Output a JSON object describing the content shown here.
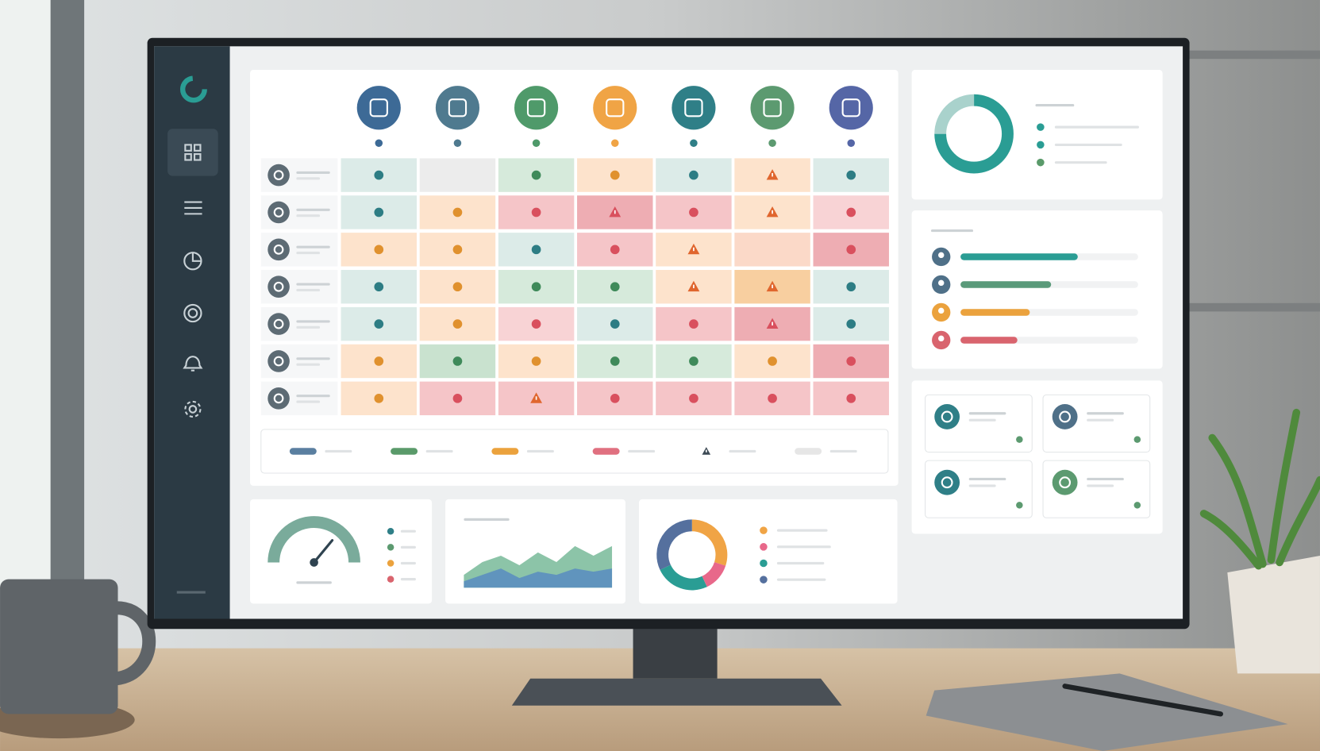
{
  "matrix": {
    "columns": [
      {
        "color": "#3d6a96"
      },
      {
        "color": "#4f7a8f"
      },
      {
        "color": "#4f9a6a"
      },
      {
        "color": "#f0a445"
      },
      {
        "color": "#2f7f87"
      },
      {
        "color": "#5c9a70"
      },
      {
        "color": "#5566a6"
      }
    ],
    "rows": [
      [
        {
          "fill": "#dcebe8",
          "dot": "#2d7d84",
          "warning": false
        },
        {
          "fill": "#ececec",
          "dot": null,
          "warning": false
        },
        {
          "fill": "#d6eadb",
          "dot": "#3f8a5a",
          "warning": false
        },
        {
          "fill": "#fde3cc",
          "dot": "#e0912e",
          "warning": false
        },
        {
          "fill": "#dcebe8",
          "dot": "#2d7d84",
          "warning": false
        },
        {
          "fill": "#fde3cc",
          "dot": "#e0662e",
          "warning": true
        },
        {
          "fill": "#dcebe8",
          "dot": "#2d7d84",
          "warning": false
        }
      ],
      [
        {
          "fill": "#dcebe8",
          "dot": "#2d7d84",
          "warning": false
        },
        {
          "fill": "#fde3cc",
          "dot": "#e0912e",
          "warning": false
        },
        {
          "fill": "#f5c5c8",
          "dot": "#d9505e",
          "warning": false
        },
        {
          "fill": "#eeadb3",
          "dot": "#d9505e",
          "warning": true
        },
        {
          "fill": "#f5c5c8",
          "dot": "#d9505e",
          "warning": false
        },
        {
          "fill": "#fde3cc",
          "dot": "#e0662e",
          "warning": true
        },
        {
          "fill": "#f8d3d5",
          "dot": "#d9505e",
          "warning": false
        }
      ],
      [
        {
          "fill": "#fde3cc",
          "dot": "#e0912e",
          "warning": false
        },
        {
          "fill": "#fde3cc",
          "dot": "#e0912e",
          "warning": false
        },
        {
          "fill": "#dcebe8",
          "dot": "#2d7d84",
          "warning": false
        },
        {
          "fill": "#f5c5c8",
          "dot": "#d9505e",
          "warning": false
        },
        {
          "fill": "#fde3cc",
          "dot": "#e0662e",
          "warning": true
        },
        {
          "fill": "#fbd9c8",
          "dot": null,
          "warning": false
        },
        {
          "fill": "#eeadb3",
          "dot": "#d9505e",
          "warning": false
        }
      ],
      [
        {
          "fill": "#dcebe8",
          "dot": "#2d7d84",
          "warning": false
        },
        {
          "fill": "#fde3cc",
          "dot": "#e0912e",
          "warning": false
        },
        {
          "fill": "#d6eadb",
          "dot": "#3f8a5a",
          "warning": false
        },
        {
          "fill": "#d6eadb",
          "dot": "#3f8a5a",
          "warning": false
        },
        {
          "fill": "#fde3cc",
          "dot": "#e0662e",
          "warning": true
        },
        {
          "fill": "#f8cfa0",
          "dot": "#e0662e",
          "warning": true
        },
        {
          "fill": "#dcebe8",
          "dot": "#2d7d84",
          "warning": false
        }
      ],
      [
        {
          "fill": "#dcebe8",
          "dot": "#2d7d84",
          "warning": false
        },
        {
          "fill": "#fde3cc",
          "dot": "#e0912e",
          "warning": false
        },
        {
          "fill": "#f8d3d5",
          "dot": "#d9505e",
          "warning": false
        },
        {
          "fill": "#dcebe8",
          "dot": "#2d7d84",
          "warning": false
        },
        {
          "fill": "#f5c5c8",
          "dot": "#d9505e",
          "warning": false
        },
        {
          "fill": "#eeadb3",
          "dot": "#d9505e",
          "warning": true
        },
        {
          "fill": "#dcebe8",
          "dot": "#2d7d84",
          "warning": false
        }
      ],
      [
        {
          "fill": "#fde3cc",
          "dot": "#e0912e",
          "warning": false
        },
        {
          "fill": "#c9e2cf",
          "dot": "#3f8a5a",
          "warning": false
        },
        {
          "fill": "#fde3cc",
          "dot": "#e0912e",
          "warning": false
        },
        {
          "fill": "#d6eadb",
          "dot": "#3f8a5a",
          "warning": false
        },
        {
          "fill": "#d6eadb",
          "dot": "#3f8a5a",
          "warning": false
        },
        {
          "fill": "#fde3cc",
          "dot": "#e0912e",
          "warning": false
        },
        {
          "fill": "#eeadb3",
          "dot": "#d9505e",
          "warning": false
        }
      ],
      [
        {
          "fill": "#fde3cc",
          "dot": "#e0912e",
          "warning": false
        },
        {
          "fill": "#f5c5c8",
          "dot": "#d9505e",
          "warning": false
        },
        {
          "fill": "#f5c5c8",
          "dot": "#e0662e",
          "warning": true
        },
        {
          "fill": "#f5c5c8",
          "dot": "#d9505e",
          "warning": false
        },
        {
          "fill": "#f5c5c8",
          "dot": "#d9505e",
          "warning": false
        },
        {
          "fill": "#f5c5c8",
          "dot": "#d9505e",
          "warning": false
        },
        {
          "fill": "#f5c5c8",
          "dot": "#d9505e",
          "warning": false
        }
      ]
    ],
    "legend_colors": [
      "#5a7fa0",
      "#5a9a6a",
      "#eba23d",
      "#e07080",
      "#3d4a55",
      "#e6e6e6"
    ]
  },
  "summary_donut": {
    "type": "pie",
    "values": [
      75,
      25
    ],
    "colors": [
      "#2a9d94",
      "#a9d2cc"
    ],
    "legend_colors": [
      "#2a9d94",
      "#2a9d94",
      "#5a9a6a"
    ]
  },
  "progress": {
    "type": "bar",
    "values": [
      66,
      51,
      39,
      32
    ],
    "xlim": [
      0,
      100
    ],
    "colors": [
      "#2a9d94",
      "#5a9a7a",
      "#eba23d",
      "#d9646e"
    ],
    "avatar_colors": [
      "#4f7088",
      "#4f7088",
      "#eba23d",
      "#d9646e"
    ]
  },
  "tiles": [
    {
      "color": "#2f7f87"
    },
    {
      "color": "#4f7088"
    },
    {
      "color": "#2f7f87"
    },
    {
      "color": "#5c9a70"
    }
  ],
  "gauge": {
    "type": "gauge",
    "value": 72,
    "ylim": [
      0,
      100
    ],
    "color": "#7aab9b",
    "legend_colors": [
      "#2f7f87",
      "#5c9a70",
      "#eba23d",
      "#d9646e"
    ]
  },
  "area": {
    "type": "area",
    "categories": [
      null,
      null,
      null,
      null,
      null,
      null,
      null,
      null,
      null
    ],
    "ylim": [
      0,
      10
    ],
    "series": [
      {
        "color": "#8cc4a8",
        "values": [
          2,
          4,
          5,
          3.5,
          5.5,
          4,
          6.5,
          5,
          6.5
        ]
      },
      {
        "color": "#5b8fbf",
        "values": [
          1,
          2,
          3,
          1.5,
          2.5,
          2,
          3,
          2.5,
          3
        ]
      }
    ]
  },
  "ring": {
    "type": "pie",
    "values": [
      30,
      13,
      25,
      32
    ],
    "colors": [
      "#f0a445",
      "#e8688a",
      "#2a9d94",
      "#55709e"
    ]
  }
}
